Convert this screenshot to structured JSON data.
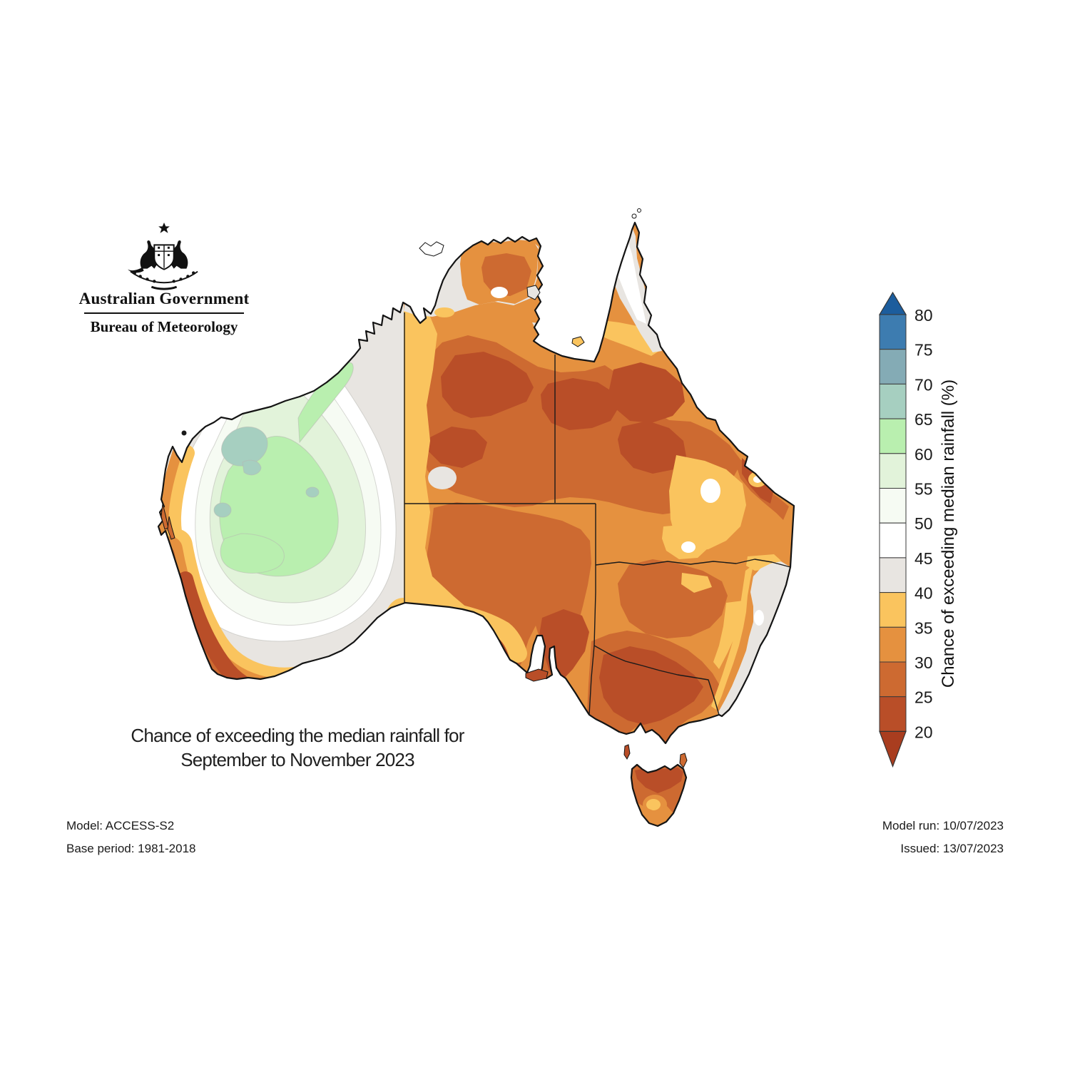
{
  "logo": {
    "government": "Australian Government",
    "bureau": "Bureau of Meteorology"
  },
  "title": {
    "line1": "Chance of exceeding the median rainfall for",
    "line2": "September to November 2023"
  },
  "colorbar": {
    "axis_label": "Chance of exceeding median rainfall (%)",
    "tick_labels": [
      "80",
      "75",
      "70",
      "65",
      "60",
      "55",
      "50",
      "45",
      "40",
      "35",
      "30",
      "25",
      "20"
    ],
    "segments_top_to_bottom": [
      {
        "key": "gt80",
        "range": "above 80",
        "color": "#1c5d9d"
      },
      {
        "key": "s75",
        "range": "75-80",
        "color": "#3d7cb0"
      },
      {
        "key": "s70",
        "range": "70-75",
        "color": "#84abb5"
      },
      {
        "key": "s65",
        "range": "65-70",
        "color": "#a6cfc0"
      },
      {
        "key": "s60",
        "range": "60-65",
        "color": "#b9efaf"
      },
      {
        "key": "s55",
        "range": "55-60",
        "color": "#e2f3da"
      },
      {
        "key": "s50",
        "range": "50-55",
        "color": "#f6fbf3"
      },
      {
        "key": "s45",
        "range": "45-50",
        "color": "#ffffff"
      },
      {
        "key": "s40",
        "range": "40-45",
        "color": "#e8e5e1"
      },
      {
        "key": "s35",
        "range": "35-40",
        "color": "#fac45e"
      },
      {
        "key": "s30",
        "range": "30-35",
        "color": "#e5913f"
      },
      {
        "key": "s25",
        "range": "25-30",
        "color": "#cd6a31"
      },
      {
        "key": "s20",
        "range": "20-25",
        "color": "#b94e28"
      },
      {
        "key": "lt20",
        "range": "below 20",
        "color": "#a93d1f"
      }
    ]
  },
  "footnotes": {
    "model": "Model: ACCESS-S2",
    "base_period": "Base period: 1981-2018",
    "model_run": "Model run: 10/07/2023",
    "issued": "Issued: 13/07/2023"
  }
}
